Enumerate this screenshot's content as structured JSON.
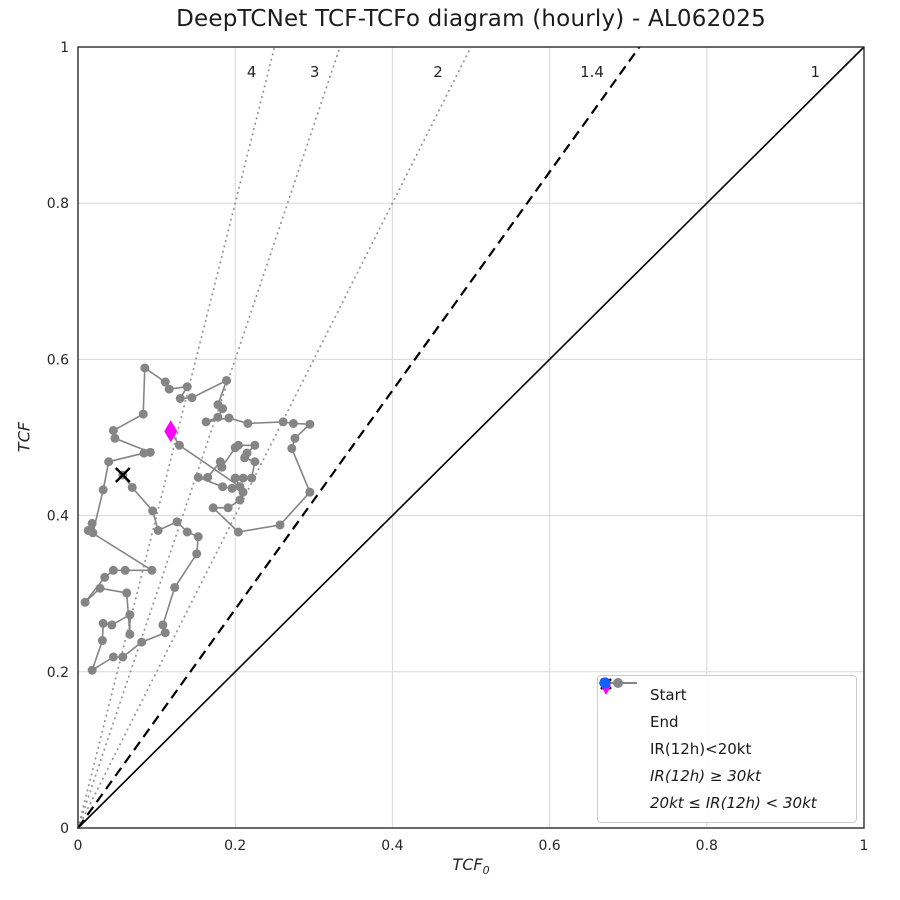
{
  "title": "DeepTCNet TCF-TCFo diagram (hourly) - AL062025",
  "axes": {
    "xlabel_base": "TCF",
    "xlabel_sub": "0",
    "ylabel": "TCF"
  },
  "colors": {
    "track": "#858585",
    "ratio_dotted": "#999999",
    "grid": "#d8d8d8",
    "spine": "#2b2b2b",
    "text": "#262626",
    "start": "#000000",
    "end": "#ff00ff",
    "red": "#e8000b",
    "blue": "#0f62fe",
    "black_line": "#000000"
  },
  "legend": {
    "items": [
      {
        "label": "Start",
        "marker": "x",
        "color": "#000000",
        "italic": false
      },
      {
        "label": "End",
        "marker": "diamond",
        "color": "#ff00ff",
        "italic": false
      },
      {
        "label": "IR(12h)<20kt",
        "marker": "line-dot",
        "color": "#858585",
        "italic": false
      },
      {
        "label": "IR(12h) ≥ 30kt",
        "marker": "dot",
        "color": "#e8000b",
        "italic": true
      },
      {
        "label": "20kt ≤ IR(12h) < 30kt",
        "marker": "dot",
        "color": "#0f62fe",
        "italic": true
      }
    ]
  },
  "chart_data": {
    "type": "scatter",
    "title": "DeepTCNet TCF-TCFo diagram (hourly) - AL062025",
    "xlabel": "TCF_0",
    "ylabel": "TCF",
    "xlim": [
      0,
      1
    ],
    "ylim": [
      0,
      1
    ],
    "grid": true,
    "legend_position": "lower right",
    "x_ticks": [
      0,
      0.2,
      0.4,
      0.6,
      0.8,
      1
    ],
    "y_ticks": [
      0,
      0.2,
      0.4,
      0.6,
      0.8,
      1
    ],
    "x_tick_labels": [
      "0",
      "0.2",
      "0.4",
      "0.6",
      "0.8",
      "1"
    ],
    "y_tick_labels": [
      "0",
      "0.2",
      "0.4",
      "0.6",
      "0.8",
      "1"
    ],
    "reference_lines": [
      {
        "label": "4",
        "slope": 4,
        "style": "dotted",
        "color": "#999999",
        "label_x": 0.221,
        "label_y": 0.968
      },
      {
        "label": "3",
        "slope": 3,
        "style": "dotted",
        "color": "#999999",
        "label_x": 0.301,
        "label_y": 0.968
      },
      {
        "label": "2",
        "slope": 2,
        "style": "dotted",
        "color": "#999999",
        "label_x": 0.458,
        "label_y": 0.968
      },
      {
        "label": "1.4",
        "slope": 1.4,
        "style": "dashed",
        "color": "#000000",
        "label_x": 0.654,
        "label_y": 0.968
      },
      {
        "label": "1",
        "slope": 1,
        "style": "solid",
        "color": "#000000",
        "label_x": 0.938,
        "label_y": 0.968
      }
    ],
    "series": [
      {
        "name": "IR(12h)<20kt",
        "type": "line+marker",
        "color": "#858585",
        "points": [
          [
            0.057,
            0.452
          ],
          [
            0.069,
            0.436
          ],
          [
            0.095,
            0.406
          ],
          [
            0.102,
            0.381
          ],
          [
            0.126,
            0.392
          ],
          [
            0.139,
            0.379
          ],
          [
            0.153,
            0.373
          ],
          [
            0.151,
            0.351
          ],
          [
            0.123,
            0.308
          ],
          [
            0.108,
            0.26
          ],
          [
            0.111,
            0.25
          ],
          [
            0.081,
            0.238
          ],
          [
            0.057,
            0.219
          ],
          [
            0.045,
            0.219
          ],
          [
            0.018,
            0.202
          ],
          [
            0.031,
            0.24
          ],
          [
            0.032,
            0.262
          ],
          [
            0.043,
            0.26
          ],
          [
            0.066,
            0.273
          ],
          [
            0.066,
            0.248
          ],
          [
            0.062,
            0.301
          ],
          [
            0.028,
            0.307
          ],
          [
            0.009,
            0.289
          ],
          [
            0.034,
            0.321
          ],
          [
            0.045,
            0.33
          ],
          [
            0.06,
            0.33
          ],
          [
            0.094,
            0.33
          ],
          [
            0.013,
            0.381
          ],
          [
            0.018,
            0.39
          ],
          [
            0.019,
            0.378
          ],
          [
            0.032,
            0.433
          ],
          [
            0.039,
            0.469
          ],
          [
            0.084,
            0.48
          ],
          [
            0.092,
            0.481
          ],
          [
            0.047,
            0.499
          ],
          [
            0.045,
            0.509
          ],
          [
            0.083,
            0.53
          ],
          [
            0.085,
            0.589
          ],
          [
            0.111,
            0.571
          ],
          [
            0.116,
            0.562
          ],
          [
            0.139,
            0.565
          ],
          [
            0.13,
            0.55
          ],
          [
            0.145,
            0.551
          ],
          [
            0.189,
            0.573
          ],
          [
            0.178,
            0.542
          ],
          [
            0.184,
            0.537
          ],
          [
            0.178,
            0.526
          ],
          [
            0.163,
            0.52
          ],
          [
            0.192,
            0.525
          ],
          [
            0.216,
            0.518
          ],
          [
            0.261,
            0.52
          ],
          [
            0.274,
            0.518
          ],
          [
            0.295,
            0.517
          ],
          [
            0.276,
            0.499
          ],
          [
            0.272,
            0.486
          ],
          [
            0.295,
            0.43
          ],
          [
            0.257,
            0.388
          ],
          [
            0.204,
            0.379
          ],
          [
            0.172,
            0.41
          ],
          [
            0.191,
            0.41
          ],
          [
            0.206,
            0.42
          ],
          [
            0.21,
            0.43
          ],
          [
            0.2,
            0.448
          ],
          [
            0.21,
            0.448
          ],
          [
            0.221,
            0.448
          ],
          [
            0.225,
            0.469
          ],
          [
            0.212,
            0.474
          ],
          [
            0.215,
            0.48
          ],
          [
            0.225,
            0.49
          ],
          [
            0.204,
            0.49
          ],
          [
            0.2,
            0.487
          ],
          [
            0.183,
            0.462
          ],
          [
            0.181,
            0.469
          ],
          [
            0.165,
            0.449
          ],
          [
            0.153,
            0.449
          ],
          [
            0.184,
            0.437
          ],
          [
            0.196,
            0.435
          ],
          [
            0.206,
            0.437
          ],
          [
            0.129,
            0.49
          ],
          [
            0.118,
            0.508
          ]
        ]
      }
    ],
    "start_marker": {
      "label": "Start",
      "x": 0.057,
      "y": 0.452,
      "marker": "x",
      "color": "#000000"
    },
    "end_marker": {
      "label": "End",
      "x": 0.118,
      "y": 0.508,
      "marker": "diamond",
      "color": "#ff00ff"
    }
  }
}
